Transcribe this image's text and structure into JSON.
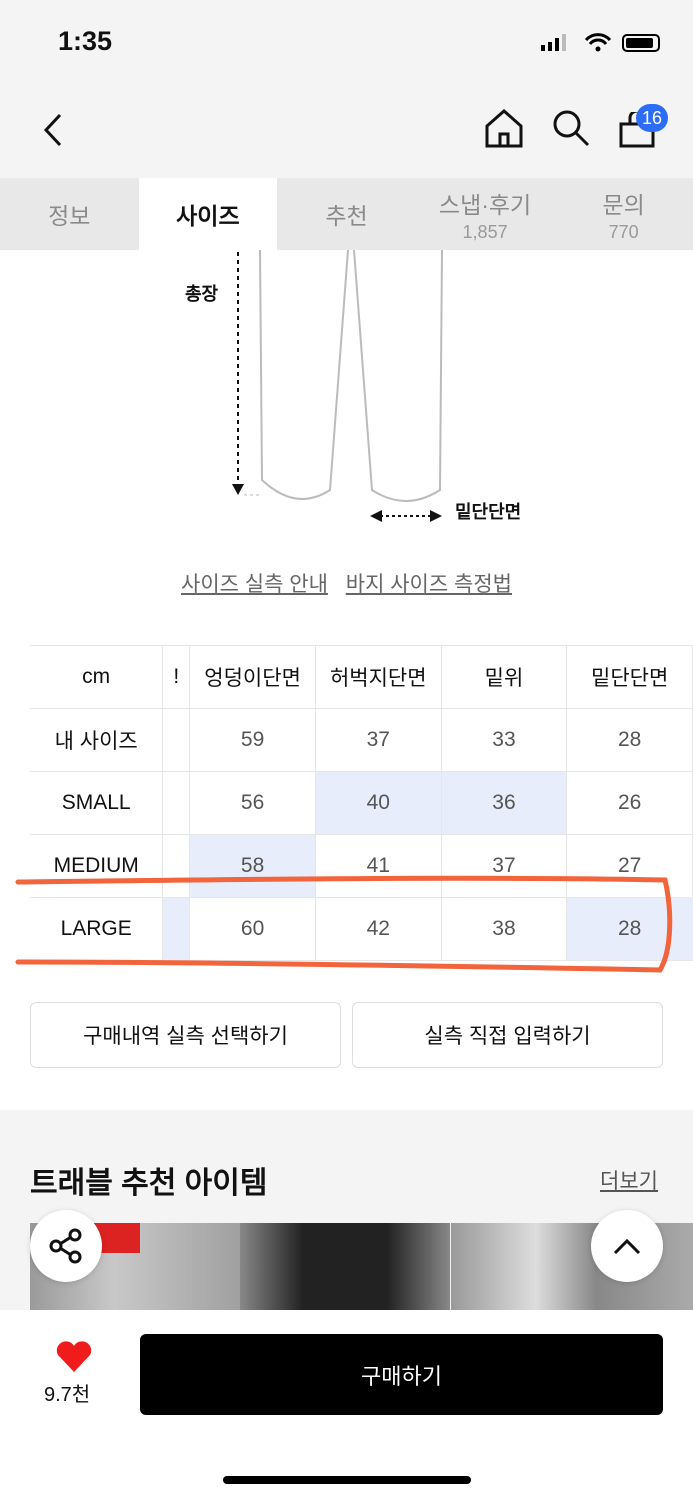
{
  "status_bar": {
    "time": "1:35"
  },
  "nav": {
    "cart_count": "16"
  },
  "tabs": [
    {
      "label": "정보"
    },
    {
      "label": "사이즈",
      "active": true
    },
    {
      "label": "추천"
    },
    {
      "label": "스냅·후기",
      "count": "1,857"
    },
    {
      "label": "문의",
      "count": "770"
    }
  ],
  "diagram": {
    "length_label": "총장",
    "hem_label": "밑단단면"
  },
  "links": {
    "guide": "사이즈 실측 안내",
    "measure": "바지 사이즈 측정법"
  },
  "size_table": {
    "unit": "cm",
    "partial_col": "!",
    "headers": [
      "엉덩이단면",
      "허벅지단면",
      "밑위",
      "밑단단면"
    ],
    "rows": [
      {
        "label": "내 사이즈",
        "values": [
          "59",
          "37",
          "33",
          "28"
        ]
      },
      {
        "label": "SMALL",
        "values": [
          "56",
          "40",
          "36",
          "26"
        ]
      },
      {
        "label": "MEDIUM",
        "values": [
          "58",
          "41",
          "37",
          "27"
        ]
      },
      {
        "label": "LARGE",
        "values": [
          "60",
          "42",
          "38",
          "28"
        ]
      }
    ],
    "highlight_color": "#e8edfb",
    "annotation_color": "#f2643c"
  },
  "buttons": {
    "select_purchase": "구매내역 실측 선택하기",
    "manual_input": "실측 직접 입력하기"
  },
  "recommend": {
    "title": "트래블 추천 아이템",
    "more": "더보기"
  },
  "bottom": {
    "likes": "9.7천",
    "buy": "구매하기",
    "heart_color": "#f01c1c"
  }
}
